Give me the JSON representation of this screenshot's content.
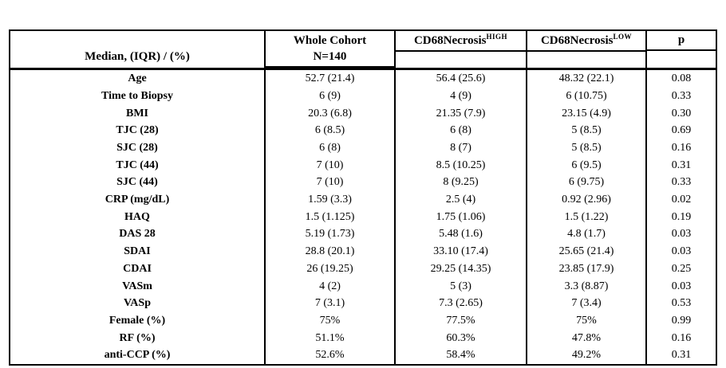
{
  "table": {
    "header": {
      "label_col": "Median, (IQR) / (%)",
      "whole_cohort": {
        "line1": "Whole Cohort",
        "line2": "N=140"
      },
      "high": {
        "base": "CD68Necrosis",
        "sup": "HIGH"
      },
      "low": {
        "base": "CD68Necrosis",
        "sup": "LOW"
      },
      "p": "p"
    },
    "rows": [
      {
        "label": "Age",
        "whole": "52.7 (21.4)",
        "high": "56.4 (25.6)",
        "low": "48.32 (22.1)",
        "p": "0.08"
      },
      {
        "label": "Time to Biopsy",
        "whole": "6 (9)",
        "high": "4 (9)",
        "low": "6 (10.75)",
        "p": "0.33"
      },
      {
        "label": "BMI",
        "whole": "20.3 (6.8)",
        "high": "21.35 (7.9)",
        "low": "23.15 (4.9)",
        "p": "0.30"
      },
      {
        "label": "TJC (28)",
        "whole": "6 (8.5)",
        "high": "6 (8)",
        "low": "5 (8.5)",
        "p": "0.69"
      },
      {
        "label": "SJC (28)",
        "whole": "6 (8)",
        "high": "8 (7)",
        "low": "5 (8.5)",
        "p": "0.16"
      },
      {
        "label": "TJC (44)",
        "whole": "7 (10)",
        "high": "8.5 (10.25)",
        "low": "6 (9.5)",
        "p": "0.31"
      },
      {
        "label": "SJC (44)",
        "whole": "7 (10)",
        "high": "8 (9.25)",
        "low": "6 (9.75)",
        "p": "0.33"
      },
      {
        "label": "CRP (mg/dL)",
        "whole": "1.59 (3.3)",
        "high": "2.5 (4)",
        "low": "0.92 (2.96)",
        "p": "0.02"
      },
      {
        "label": "HAQ",
        "whole": "1.5 (1.125)",
        "high": "1.75 (1.06)",
        "low": "1.5 (1.22)",
        "p": "0.19"
      },
      {
        "label": "DAS 28",
        "whole": "5.19 (1.73)",
        "high": "5.48 (1.6)",
        "low": "4.8 (1.7)",
        "p": "0.03"
      },
      {
        "label": "SDAI",
        "whole": "28.8 (20.1)",
        "high": "33.10 (17.4)",
        "low": "25.65 (21.4)",
        "p": "0.03"
      },
      {
        "label": "CDAI",
        "whole": "26 (19.25)",
        "high": "29.25 (14.35)",
        "low": "23.85 (17.9)",
        "p": "0.25"
      },
      {
        "label": "VASm",
        "whole": "4 (2)",
        "high": "5 (3)",
        "low": "3.3 (8.87)",
        "p": "0.03"
      },
      {
        "label": "VASp",
        "whole": "7 (3.1)",
        "high": "7.3 (2.65)",
        "low": "7 (3.4)",
        "p": "0.53"
      },
      {
        "label": "Female (%)",
        "whole": "75%",
        "high": "77.5%",
        "low": "75%",
        "p": "0.99"
      },
      {
        "label": "RF (%)",
        "whole": "51.1%",
        "high": "60.3%",
        "low": "47.8%",
        "p": "0.16"
      },
      {
        "label": "anti-CCP (%)",
        "whole": "52.6%",
        "high": "58.4%",
        "low": "49.2%",
        "p": "0.31"
      }
    ]
  }
}
